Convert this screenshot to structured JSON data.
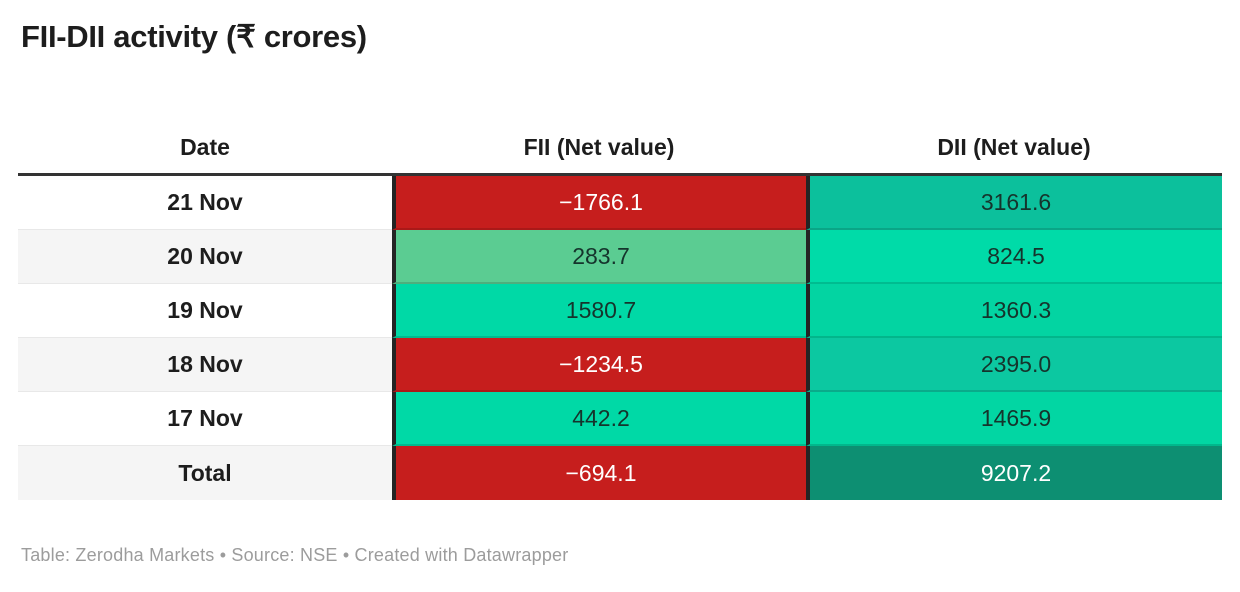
{
  "page": {
    "title": "FII-DII activity (₹ crores)",
    "footer": "Table: Zerodha Markets • Source: NSE • Created with Datawrapper"
  },
  "table": {
    "headers": {
      "date": "Date",
      "fii": "FII (Net value)",
      "dii": "DII (Net value)"
    },
    "rows": [
      {
        "date": "21 Nov",
        "fii": {
          "text": "−1766.1",
          "bg": "#c61e1d",
          "fg": "#ffffff"
        },
        "dii": {
          "text": "3161.6",
          "bg": "#0cc09c",
          "fg": "#15342c"
        }
      },
      {
        "date": "20 Nov",
        "fii": {
          "text": "283.7",
          "bg": "#5bcc92",
          "fg": "#15342c"
        },
        "dii": {
          "text": "824.5",
          "bg": "#00dba8",
          "fg": "#15342c"
        }
      },
      {
        "date": "19 Nov",
        "fii": {
          "text": "1580.7",
          "bg": "#00d9a6",
          "fg": "#15342c"
        },
        "dii": {
          "text": "1360.3",
          "bg": "#03d4a2",
          "fg": "#15342c"
        }
      },
      {
        "date": "18 Nov",
        "fii": {
          "text": "−1234.5",
          "bg": "#c61e1d",
          "fg": "#ffffff"
        },
        "dii": {
          "text": "2395.0",
          "bg": "#0cc8a1",
          "fg": "#15342c"
        }
      },
      {
        "date": "17 Nov",
        "fii": {
          "text": "442.2",
          "bg": "#00d9a6",
          "fg": "#15342c"
        },
        "dii": {
          "text": "1465.9",
          "bg": "#02d6a3",
          "fg": "#15342c"
        }
      },
      {
        "date": "Total",
        "fii": {
          "text": "−694.1",
          "bg": "#c61e1d",
          "fg": "#ffffff"
        },
        "dii": {
          "text": "9207.2",
          "bg": "#0d8f72",
          "fg": "#ffffff"
        }
      }
    ]
  },
  "chart_data": {
    "type": "table",
    "title": "FII-DII activity (₹ crores)",
    "columns": [
      "Date",
      "FII (Net value)",
      "DII (Net value)"
    ],
    "rows": [
      [
        "21 Nov",
        -1766.1,
        3161.6
      ],
      [
        "20 Nov",
        283.7,
        824.5
      ],
      [
        "19 Nov",
        1580.7,
        1360.3
      ],
      [
        "18 Nov",
        -1234.5,
        2395.0
      ],
      [
        "17 Nov",
        442.2,
        1465.9
      ],
      [
        "Total",
        -694.1,
        9207.2
      ]
    ],
    "notes": "Table: Zerodha Markets • Source: NSE • Created with Datawrapper",
    "color_coding": "FII/DII cells are heat-colored: red for negative values (white text), green scale for positive values; Total DII uses dark teal with white text"
  }
}
